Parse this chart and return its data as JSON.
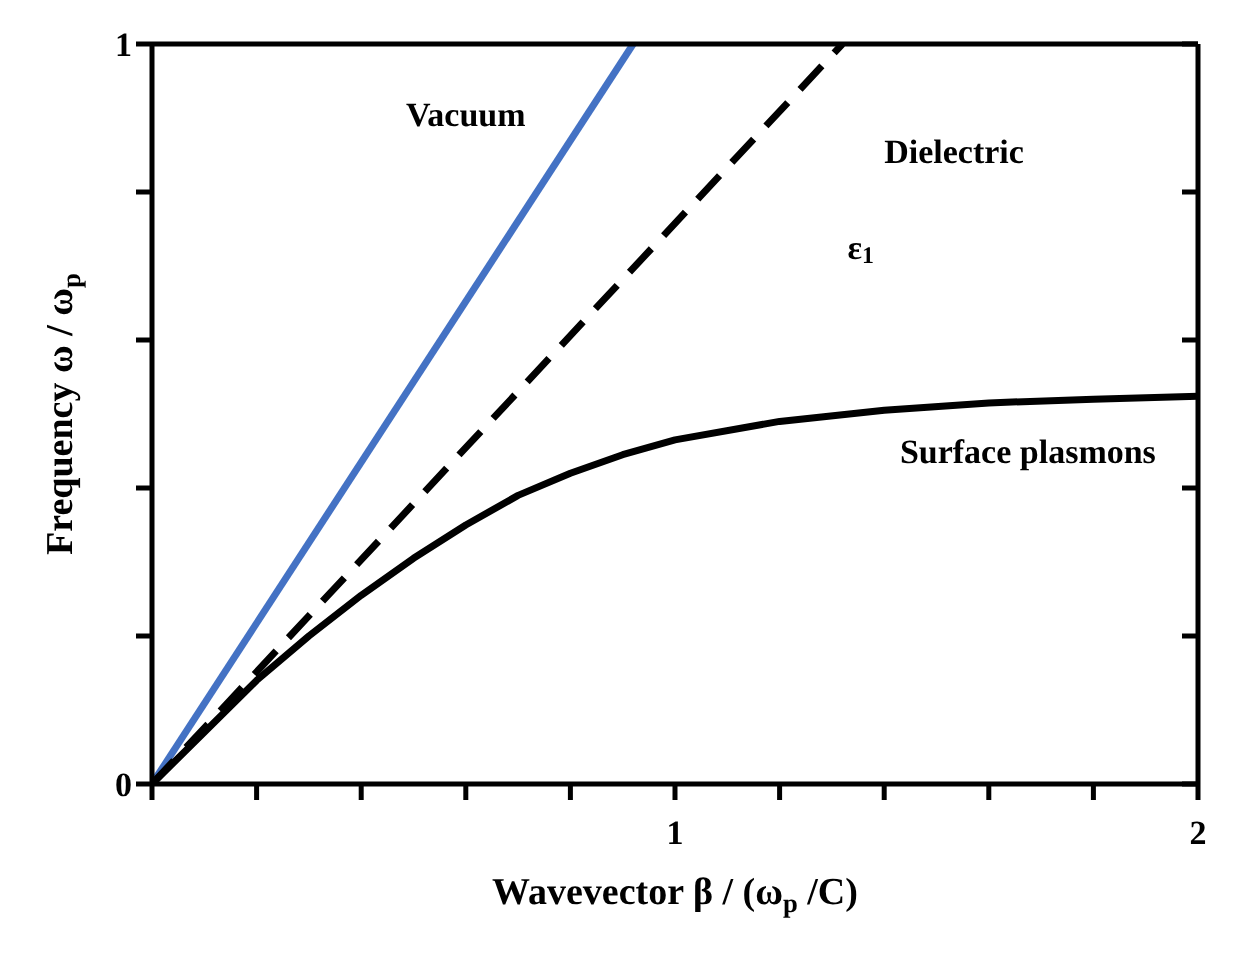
{
  "chart_data": {
    "type": "line",
    "xlabel": "Wavevector β / (ω$_{p}$ /C)",
    "ylabel": "Frequency ω / ω$_{p}$",
    "xlim": [
      0,
      2
    ],
    "ylim": [
      0,
      1
    ],
    "xticks": [
      {
        "value": 0,
        "label": null
      },
      {
        "value": 0.2,
        "label": null
      },
      {
        "value": 0.4,
        "label": null
      },
      {
        "value": 0.6,
        "label": null
      },
      {
        "value": 0.8,
        "label": null
      },
      1,
      {
        "value": 1.2,
        "label": null
      },
      {
        "value": 1.4,
        "label": null
      },
      {
        "value": 1.6,
        "label": null
      },
      {
        "value": 1.8,
        "label": null
      },
      2
    ],
    "yticks": [
      0,
      {
        "value": 0.2,
        "label": null
      },
      {
        "value": 0.4,
        "label": null
      },
      {
        "value": 0.6,
        "label": null
      },
      {
        "value": 0.8,
        "label": null
      },
      1
    ],
    "marker": "none",
    "series": [
      {
        "name": "Vacuum",
        "color": "#4472c4",
        "line_style": "solid",
        "x": [
          0,
          0.92
        ],
        "values": [
          0,
          1
        ]
      },
      {
        "name": "Dielectric",
        "color": "#000000",
        "line_style": "dashed",
        "x": [
          0,
          1.32
        ],
        "values": [
          0,
          1
        ]
      },
      {
        "name": "Surface plasmons",
        "color": "#000000",
        "line_style": "solid",
        "x": [
          0,
          0.1,
          0.2,
          0.3,
          0.4,
          0.5,
          0.6,
          0.7,
          0.8,
          0.9,
          1.0,
          1.2,
          1.4,
          1.6,
          1.8,
          2.0
        ],
        "values": [
          0,
          0.07,
          0.14,
          0.2,
          0.255,
          0.305,
          0.35,
          0.39,
          0.42,
          0.445,
          0.465,
          0.49,
          0.505,
          0.515,
          0.52,
          0.524
        ]
      }
    ],
    "annotations": [
      "ε$_{1}$"
    ]
  }
}
